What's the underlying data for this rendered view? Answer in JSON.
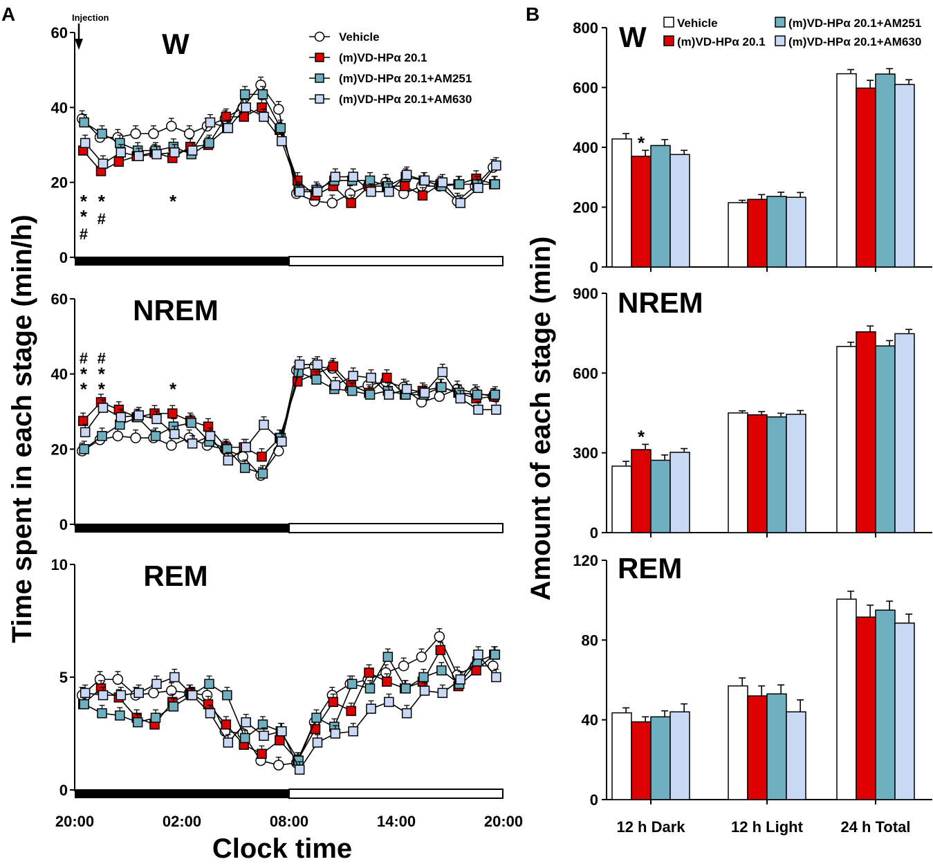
{
  "panels": {
    "a": "A",
    "b": "B"
  },
  "injection_label": "Injection",
  "colors": {
    "vehicle": "#ffffff",
    "m20": "#dd0000",
    "am251": "#6eafc0",
    "am630": "#c8d8f5",
    "stroke": "#000000"
  },
  "chart_data": [
    {
      "id": "timecourse",
      "type": "line",
      "title": "",
      "xlabel": "Clock time",
      "ylabel": "Time spent in each stage (min/h)",
      "x_ticks": [
        "20:00",
        "02:00",
        "08:00",
        "14:00",
        "20:00"
      ],
      "x_hours": [
        0,
        1,
        2,
        3,
        4,
        5,
        6,
        7,
        8,
        9,
        10,
        11,
        12,
        13,
        14,
        15,
        16,
        17,
        18,
        19,
        20,
        21,
        22,
        23
      ],
      "series_names": [
        "Vehicle",
        "(m)VD-HPα 20.1",
        "(m)VD-HPα 20.1+AM251",
        "(m)VD-HPα 20.1+AM630"
      ],
      "panels": [
        {
          "name": "W",
          "ylim": [
            0,
            60
          ],
          "yticks": [
            0,
            20,
            40,
            60
          ],
          "series": [
            {
              "name": "Vehicle",
              "values": [
                37,
                32,
                32,
                33,
                33,
                35,
                33,
                35,
                37,
                40,
                46,
                39.5,
                17,
                15,
                14.5,
                17,
                19,
                20,
                17,
                19,
                19,
                15,
                19,
                24
              ]
            },
            {
              "name": "(m)VD-HPα 20.1",
              "values": [
                28.5,
                23,
                25.5,
                27,
                28,
                26.5,
                29.5,
                30,
                37.5,
                37.5,
                40,
                34,
                20.5,
                16.5,
                19,
                14.5,
                19,
                19,
                19,
                16.5,
                19.5,
                19.5,
                21,
                19.5
              ]
            },
            {
              "name": "(m)VD-HPα 20.1+AM251",
              "values": [
                36,
                33,
                30.5,
                28.5,
                28.5,
                29.5,
                27.5,
                30.5,
                34.5,
                43.5,
                43.5,
                34.5,
                18,
                18,
                20.5,
                20.5,
                20.5,
                19,
                21.5,
                20.5,
                19,
                19.5,
                19.5,
                19.5
              ]
            },
            {
              "name": "(m)VD-HPα 20.1+AM630",
              "values": [
                30.5,
                25,
                28,
                27,
                27.5,
                28,
                28.5,
                36,
                34.5,
                40,
                37.5,
                31,
                17.5,
                17.5,
                21.5,
                21.5,
                17.5,
                17.5,
                22,
                20.5,
                20,
                14.5,
                18.5,
                24.5
              ]
            }
          ],
          "annotations": {
            "stars": [
              {
                "hour": 0,
                "text": "*"
              },
              {
                "hour": 0,
                "text": "*"
              },
              {
                "hour": 1,
                "text": "*"
              },
              {
                "hour": 5,
                "text": "*"
              }
            ],
            "hashes": [
              {
                "hour": 0,
                "text": "#"
              },
              {
                "hour": 1,
                "text": "#"
              }
            ]
          }
        },
        {
          "name": "NREM",
          "ylim": [
            0,
            60
          ],
          "yticks": [
            0,
            20,
            40,
            60
          ],
          "series": [
            {
              "name": "Vehicle",
              "values": [
                19.5,
                22.5,
                23.5,
                23,
                23,
                21,
                23,
                21,
                20,
                18,
                13,
                19.5,
                41,
                42,
                41.5,
                36,
                37,
                38,
                36.5,
                32.5,
                34,
                36,
                35,
                34
              ]
            },
            {
              "name": "(m)VD-HPα 20.1",
              "values": [
                27.5,
                32.5,
                30.5,
                28.5,
                29.5,
                29.5,
                27.5,
                26,
                20.5,
                20.5,
                18,
                23,
                38,
                40,
                42,
                37,
                35,
                39,
                34.5,
                35.5,
                36.5,
                35,
                33.5,
                34
              ]
            },
            {
              "name": "(m)VD-HPα 20.1+AM251",
              "values": [
                20,
                23.5,
                26.5,
                28.5,
                23.5,
                26,
                27,
                22,
                20,
                15,
                13.5,
                23,
                40.5,
                38.5,
                36,
                35.5,
                34.5,
                35.5,
                34.5,
                34.5,
                36.5,
                35,
                34.5,
                34.5
              ]
            },
            {
              "name": "(m)VD-HPα 20.1+AM630",
              "values": [
                24.5,
                31,
                28.5,
                29,
                28,
                24,
                21.5,
                23.5,
                17,
                20.5,
                26.5,
                22,
                42.5,
                42.5,
                37,
                39.5,
                39,
                34.5,
                36,
                35,
                40.5,
                33.5,
                30.5,
                30.5
              ]
            }
          ],
          "annotations": {
            "stars": [
              {
                "hour": 0,
                "text": "*"
              },
              {
                "hour": 0,
                "text": "*"
              },
              {
                "hour": 1,
                "text": "*"
              },
              {
                "hour": 1,
                "text": "*"
              },
              {
                "hour": 5,
                "text": "*"
              }
            ],
            "hashes": [
              {
                "hour": 0,
                "text": "#"
              },
              {
                "hour": 1,
                "text": "#"
              }
            ]
          }
        },
        {
          "name": "REM",
          "ylim": [
            0,
            10
          ],
          "yticks": [
            0,
            5,
            10
          ],
          "series": [
            {
              "name": "Vehicle",
              "values": [
                4.2,
                4.9,
                4.9,
                4.2,
                4.3,
                4.4,
                4.3,
                4.2,
                2.6,
                2.5,
                1.3,
                1.1,
                1.2,
                3.0,
                4.2,
                4.7,
                4.9,
                5.2,
                5.5,
                5.9,
                6.8,
                5.1,
                5.5,
                5.5
              ]
            },
            {
              "name": "(m)VD-HPα 20.1",
              "values": [
                3.8,
                4.5,
                4.1,
                3.2,
                2.9,
                3.9,
                4.3,
                3.8,
                2.9,
                2.0,
                1.6,
                2.2,
                1.3,
                2.7,
                3.9,
                3.5,
                5.2,
                4.8,
                4.5,
                4.8,
                6.2,
                4.6,
                5.3,
                6.0
              ]
            },
            {
              "name": "(m)VD-HPα 20.1+AM251",
              "values": [
                3.8,
                3.4,
                3.3,
                3.0,
                3.2,
                3.7,
                4.2,
                4.7,
                4.2,
                2.3,
                2.9,
                2.6,
                1.3,
                3.2,
                2.8,
                4.7,
                4.5,
                5.9,
                4.5,
                5.0,
                5.3,
                4.7,
                5.7,
                6.0
              ]
            },
            {
              "name": "(m)VD-HPα 20.1+AM630",
              "values": [
                4.3,
                4.2,
                4.2,
                4.3,
                4.7,
                5.0,
                4.2,
                3.4,
                2.1,
                3.0,
                2.4,
                2.6,
                0.9,
                2.1,
                2.5,
                2.6,
                3.6,
                3.9,
                3.4,
                4.4,
                4.3,
                4.9,
                6.0,
                5.0
              ]
            }
          ],
          "annotations": {
            "stars": [],
            "hashes": []
          }
        }
      ]
    },
    {
      "id": "totals",
      "type": "bar",
      "title": "",
      "xlabel": "",
      "ylabel": "Amount of each stage (min)",
      "categories": [
        "12 h Dark",
        "12 h Light",
        "24 h Total"
      ],
      "series_names": [
        "Vehicle",
        "(m)VD-HPα 20.1",
        "(m)VD-HPα 20.1+AM251",
        "(m)VD-HPα 20.1+AM630"
      ],
      "panels": [
        {
          "name": "W",
          "ylim": [
            0,
            800
          ],
          "yticks": [
            0,
            200,
            400,
            600,
            800
          ],
          "series": [
            {
              "name": "Vehicle",
              "values": [
                428,
                215,
                646
              ],
              "errors": [
                18,
                8,
                14
              ]
            },
            {
              "name": "(m)VD-HPα 20.1",
              "values": [
                370,
                226,
                598
              ],
              "errors": [
                20,
                16,
                26
              ]
            },
            {
              "name": "(m)VD-HPα 20.1+AM251",
              "values": [
                406,
                236,
                645
              ],
              "errors": [
                20,
                14,
                18
              ]
            },
            {
              "name": "(m)VD-HPα 20.1+AM630",
              "values": [
                376,
                233,
                610
              ],
              "errors": [
                14,
                16,
                16
              ]
            }
          ],
          "annotations": [
            {
              "category": 0,
              "series": 1,
              "text": "*"
            }
          ]
        },
        {
          "name": "NREM",
          "ylim": [
            0,
            900
          ],
          "yticks": [
            0,
            300,
            600,
            900
          ],
          "series": [
            {
              "name": "Vehicle",
              "values": [
                250,
                450,
                700
              ],
              "errors": [
                18,
                8,
                16
              ]
            },
            {
              "name": "(m)VD-HPα 20.1",
              "values": [
                312,
                443,
                755
              ],
              "errors": [
                20,
                12,
                22
              ]
            },
            {
              "name": "(m)VD-HPα 20.1+AM251",
              "values": [
                272,
                435,
                702
              ],
              "errors": [
                20,
                14,
                20
              ]
            },
            {
              "name": "(m)VD-HPα 20.1+AM630",
              "values": [
                302,
                445,
                748
              ],
              "errors": [
                14,
                14,
                16
              ]
            }
          ],
          "annotations": [
            {
              "category": 0,
              "series": 1,
              "text": "*"
            }
          ]
        },
        {
          "name": "REM",
          "ylim": [
            0,
            120
          ],
          "yticks": [
            0,
            40,
            80,
            120
          ],
          "series": [
            {
              "name": "Vehicle",
              "values": [
                43.5,
                57,
                100.5
              ],
              "errors": [
                2.5,
                4,
                4
              ]
            },
            {
              "name": "(m)VD-HPα 20.1",
              "values": [
                39,
                52,
                91.5
              ],
              "errors": [
                2.5,
                5,
                6
              ]
            },
            {
              "name": "(m)VD-HPα 20.1+AM251",
              "values": [
                41.5,
                53,
                95
              ],
              "errors": [
                3,
                4.5,
                4.5
              ]
            },
            {
              "name": "(m)VD-HPα 20.1+AM630",
              "values": [
                44,
                44,
                88.5
              ],
              "errors": [
                4,
                6,
                4.5
              ]
            }
          ],
          "annotations": []
        }
      ]
    }
  ]
}
